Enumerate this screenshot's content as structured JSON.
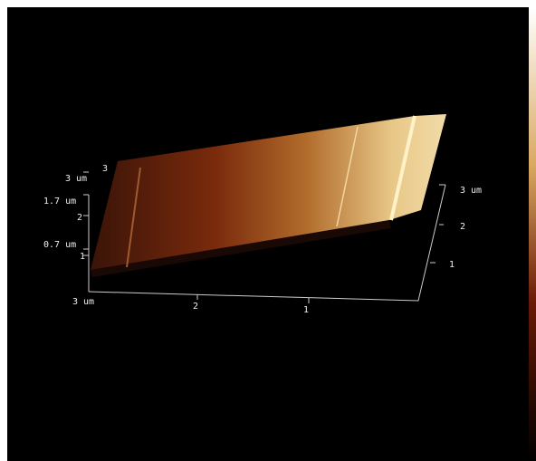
{
  "z_axis": {
    "max_label": "3 um",
    "ticks": [
      "3",
      "2",
      "1"
    ],
    "scale_labels": [
      "1.7 um",
      "0.7 um"
    ]
  },
  "x_axis": {
    "origin_label": "3 um",
    "ticks": [
      "2",
      "1"
    ]
  },
  "y_axis": {
    "max_label": "3 um",
    "ticks": [
      "2",
      "1"
    ]
  }
}
